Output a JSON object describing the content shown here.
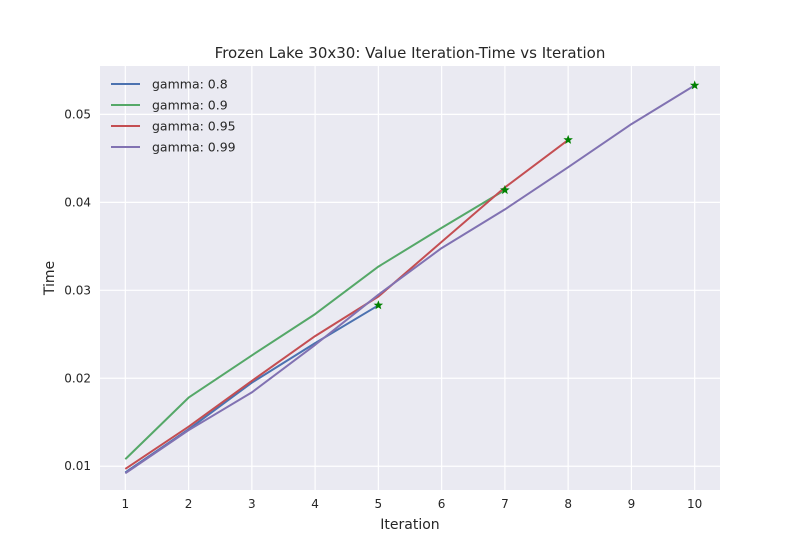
{
  "chart_data": {
    "type": "line",
    "title": "Frozen Lake 30x30: Value Iteration-Time vs Iteration",
    "xlabel": "Iteration",
    "ylabel": "Time",
    "xlim": [
      0.6,
      10.4
    ],
    "ylim": [
      0.0073,
      0.0555
    ],
    "x_ticks": [
      1,
      2,
      3,
      4,
      5,
      6,
      7,
      8,
      9,
      10
    ],
    "y_ticks": [
      0.01,
      0.02,
      0.03,
      0.04,
      0.05
    ],
    "x_tick_labels": [
      "1",
      "2",
      "3",
      "4",
      "5",
      "6",
      "7",
      "8",
      "9",
      "10"
    ],
    "y_tick_labels": [
      "0.01",
      "0.02",
      "0.03",
      "0.04",
      "0.05"
    ],
    "grid": true,
    "legend_position": "top-left",
    "marker_color": "#008000",
    "series": [
      {
        "name": "gamma: 0.8",
        "color": "#4c72b0",
        "x": [
          1,
          2,
          3,
          4,
          5
        ],
        "y": [
          0.0093,
          0.0142,
          0.0195,
          0.024,
          0.0283
        ]
      },
      {
        "name": "gamma: 0.9",
        "color": "#55a868",
        "x": [
          1,
          2,
          3,
          4,
          5,
          6,
          7
        ],
        "y": [
          0.0108,
          0.0178,
          0.0226,
          0.0273,
          0.0327,
          0.0371,
          0.0414
        ]
      },
      {
        "name": "gamma: 0.95",
        "color": "#c44e52",
        "x": [
          1,
          2,
          3,
          4,
          5,
          6,
          7,
          8
        ],
        "y": [
          0.0097,
          0.0145,
          0.0197,
          0.0248,
          0.0293,
          0.0355,
          0.0417,
          0.0471
        ]
      },
      {
        "name": "gamma: 0.99",
        "color": "#8172b2",
        "x": [
          1,
          2,
          3,
          4,
          5,
          6,
          7,
          8,
          9,
          10
        ],
        "y": [
          0.0092,
          0.0141,
          0.0184,
          0.0238,
          0.0295,
          0.0348,
          0.0392,
          0.044,
          0.0489,
          0.0533
        ]
      }
    ]
  }
}
